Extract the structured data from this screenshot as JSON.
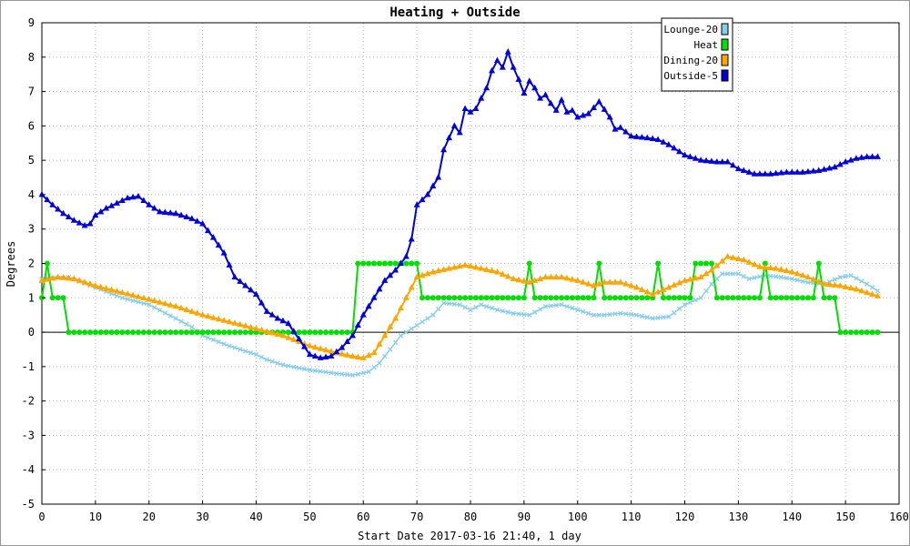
{
  "chart_data": {
    "type": "line",
    "title": "Heating + Outside",
    "xlabel": "Start Date 2017-03-16 21:40, 1 day",
    "ylabel": "Degrees",
    "xlim": [
      0,
      160
    ],
    "ylim": [
      -5,
      9
    ],
    "x_ticks": [
      0,
      10,
      20,
      30,
      40,
      50,
      60,
      70,
      80,
      90,
      100,
      110,
      120,
      130,
      140,
      150,
      160
    ],
    "y_ticks": [
      -5,
      -4,
      -3,
      -2,
      -1,
      0,
      1,
      2,
      3,
      4,
      5,
      6,
      7,
      8,
      9
    ],
    "grid": true,
    "legend_position": "top-right",
    "series": [
      {
        "name": "Lounge-20",
        "color": "#87ceeb",
        "marker": "x",
        "points": [
          [
            0,
            1.55
          ],
          [
            5,
            1.6
          ],
          [
            10,
            1.3
          ],
          [
            15,
            1.0
          ],
          [
            20,
            0.8
          ],
          [
            25,
            0.4
          ],
          [
            28,
            0.15
          ],
          [
            30,
            -0.1
          ],
          [
            35,
            -0.4
          ],
          [
            40,
            -0.65
          ],
          [
            42,
            -0.8
          ],
          [
            45,
            -0.95
          ],
          [
            50,
            -1.1
          ],
          [
            55,
            -1.2
          ],
          [
            58,
            -1.25
          ],
          [
            61,
            -1.15
          ],
          [
            63,
            -0.9
          ],
          [
            65,
            -0.5
          ],
          [
            67,
            -0.1
          ],
          [
            70,
            0.2
          ],
          [
            73,
            0.5
          ],
          [
            75,
            0.85
          ],
          [
            78,
            0.8
          ],
          [
            80,
            0.65
          ],
          [
            82,
            0.8
          ],
          [
            85,
            0.65
          ],
          [
            88,
            0.55
          ],
          [
            91,
            0.5
          ],
          [
            94,
            0.75
          ],
          [
            97,
            0.8
          ],
          [
            100,
            0.65
          ],
          [
            103,
            0.5
          ],
          [
            105,
            0.5
          ],
          [
            108,
            0.55
          ],
          [
            111,
            0.5
          ],
          [
            114,
            0.4
          ],
          [
            117,
            0.45
          ],
          [
            120,
            0.8
          ],
          [
            123,
            1.0
          ],
          [
            125,
            1.4
          ],
          [
            127,
            1.7
          ],
          [
            130,
            1.7
          ],
          [
            132,
            1.55
          ],
          [
            135,
            1.65
          ],
          [
            138,
            1.6
          ],
          [
            140,
            1.55
          ],
          [
            143,
            1.45
          ],
          [
            146,
            1.4
          ],
          [
            149,
            1.6
          ],
          [
            151,
            1.65
          ],
          [
            154,
            1.4
          ],
          [
            156,
            1.2
          ]
        ]
      },
      {
        "name": "Heat",
        "color": "#00e000",
        "marker": "circle",
        "points": [
          [
            0,
            1
          ],
          [
            1,
            2
          ],
          [
            2,
            1
          ],
          [
            4,
            1
          ],
          [
            5,
            0
          ],
          [
            58,
            0
          ],
          [
            59,
            2
          ],
          [
            70,
            2
          ],
          [
            71,
            1
          ],
          [
            90,
            1
          ],
          [
            91,
            2
          ],
          [
            92,
            1
          ],
          [
            103,
            1
          ],
          [
            104,
            2
          ],
          [
            105,
            1
          ],
          [
            114,
            1
          ],
          [
            115,
            2
          ],
          [
            116,
            1
          ],
          [
            121,
            1
          ],
          [
            122,
            2
          ],
          [
            125,
            2
          ],
          [
            126,
            1
          ],
          [
            134,
            1
          ],
          [
            135,
            2
          ],
          [
            136,
            1
          ],
          [
            144,
            1
          ],
          [
            145,
            2
          ],
          [
            146,
            1
          ],
          [
            148,
            1
          ],
          [
            149,
            0
          ],
          [
            156,
            0
          ]
        ]
      },
      {
        "name": "Dining-20",
        "color": "#ffa500",
        "marker": "triangle",
        "points": [
          [
            0,
            1.5
          ],
          [
            3,
            1.6
          ],
          [
            6,
            1.55
          ],
          [
            10,
            1.35
          ],
          [
            15,
            1.15
          ],
          [
            20,
            0.95
          ],
          [
            25,
            0.75
          ],
          [
            30,
            0.5
          ],
          [
            35,
            0.3
          ],
          [
            40,
            0.1
          ],
          [
            45,
            -0.1
          ],
          [
            50,
            -0.4
          ],
          [
            55,
            -0.6
          ],
          [
            58,
            -0.7
          ],
          [
            60,
            -0.75
          ],
          [
            62,
            -0.6
          ],
          [
            64,
            -0.1
          ],
          [
            66,
            0.4
          ],
          [
            68,
            1.0
          ],
          [
            70,
            1.6
          ],
          [
            73,
            1.75
          ],
          [
            76,
            1.85
          ],
          [
            79,
            1.95
          ],
          [
            82,
            1.85
          ],
          [
            85,
            1.75
          ],
          [
            88,
            1.55
          ],
          [
            91,
            1.45
          ],
          [
            94,
            1.6
          ],
          [
            97,
            1.6
          ],
          [
            100,
            1.5
          ],
          [
            103,
            1.35
          ],
          [
            105,
            1.45
          ],
          [
            108,
            1.45
          ],
          [
            111,
            1.3
          ],
          [
            114,
            1.1
          ],
          [
            117,
            1.3
          ],
          [
            120,
            1.5
          ],
          [
            123,
            1.6
          ],
          [
            125,
            1.8
          ],
          [
            128,
            2.2
          ],
          [
            131,
            2.1
          ],
          [
            134,
            1.9
          ],
          [
            137,
            1.85
          ],
          [
            140,
            1.75
          ],
          [
            143,
            1.6
          ],
          [
            146,
            1.4
          ],
          [
            149,
            1.35
          ],
          [
            152,
            1.25
          ],
          [
            156,
            1.05
          ]
        ]
      },
      {
        "name": "Outside-5",
        "color": "#0000dd",
        "marker": "triangle",
        "points": [
          [
            0,
            4.0
          ],
          [
            2,
            3.7
          ],
          [
            4,
            3.45
          ],
          [
            6,
            3.25
          ],
          [
            8,
            3.1
          ],
          [
            9,
            3.15
          ],
          [
            10,
            3.4
          ],
          [
            12,
            3.6
          ],
          [
            14,
            3.75
          ],
          [
            16,
            3.9
          ],
          [
            18,
            3.95
          ],
          [
            20,
            3.7
          ],
          [
            22,
            3.5
          ],
          [
            25,
            3.45
          ],
          [
            28,
            3.3
          ],
          [
            30,
            3.15
          ],
          [
            32,
            2.75
          ],
          [
            34,
            2.3
          ],
          [
            36,
            1.6
          ],
          [
            38,
            1.35
          ],
          [
            40,
            1.1
          ],
          [
            42,
            0.6
          ],
          [
            44,
            0.4
          ],
          [
            46,
            0.25
          ],
          [
            48,
            -0.2
          ],
          [
            50,
            -0.65
          ],
          [
            52,
            -0.75
          ],
          [
            54,
            -0.7
          ],
          [
            56,
            -0.45
          ],
          [
            58,
            -0.1
          ],
          [
            60,
            0.5
          ],
          [
            62,
            1.0
          ],
          [
            64,
            1.5
          ],
          [
            66,
            1.8
          ],
          [
            68,
            2.2
          ],
          [
            69,
            2.7
          ],
          [
            70,
            3.7
          ],
          [
            72,
            4.0
          ],
          [
            74,
            4.5
          ],
          [
            75,
            5.3
          ],
          [
            77,
            6.0
          ],
          [
            78,
            5.8
          ],
          [
            79,
            6.5
          ],
          [
            80,
            6.4
          ],
          [
            81,
            6.5
          ],
          [
            82,
            6.8
          ],
          [
            83,
            7.1
          ],
          [
            84,
            7.6
          ],
          [
            85,
            7.9
          ],
          [
            86,
            7.7
          ],
          [
            87,
            8.15
          ],
          [
            88,
            7.7
          ],
          [
            89,
            7.35
          ],
          [
            90,
            6.95
          ],
          [
            91,
            7.3
          ],
          [
            92,
            7.1
          ],
          [
            93,
            6.8
          ],
          [
            94,
            6.9
          ],
          [
            95,
            6.65
          ],
          [
            96,
            6.45
          ],
          [
            97,
            6.75
          ],
          [
            98,
            6.4
          ],
          [
            99,
            6.45
          ],
          [
            100,
            6.25
          ],
          [
            102,
            6.35
          ],
          [
            104,
            6.7
          ],
          [
            106,
            6.25
          ],
          [
            107,
            5.9
          ],
          [
            108,
            5.95
          ],
          [
            110,
            5.7
          ],
          [
            113,
            5.65
          ],
          [
            115,
            5.6
          ],
          [
            117,
            5.45
          ],
          [
            120,
            5.15
          ],
          [
            123,
            5.0
          ],
          [
            126,
            4.95
          ],
          [
            128,
            4.95
          ],
          [
            130,
            4.75
          ],
          [
            133,
            4.6
          ],
          [
            136,
            4.6
          ],
          [
            139,
            4.65
          ],
          [
            142,
            4.65
          ],
          [
            145,
            4.7
          ],
          [
            148,
            4.8
          ],
          [
            150,
            4.95
          ],
          [
            152,
            5.05
          ],
          [
            154,
            5.1
          ],
          [
            156,
            5.1
          ]
        ]
      }
    ]
  }
}
